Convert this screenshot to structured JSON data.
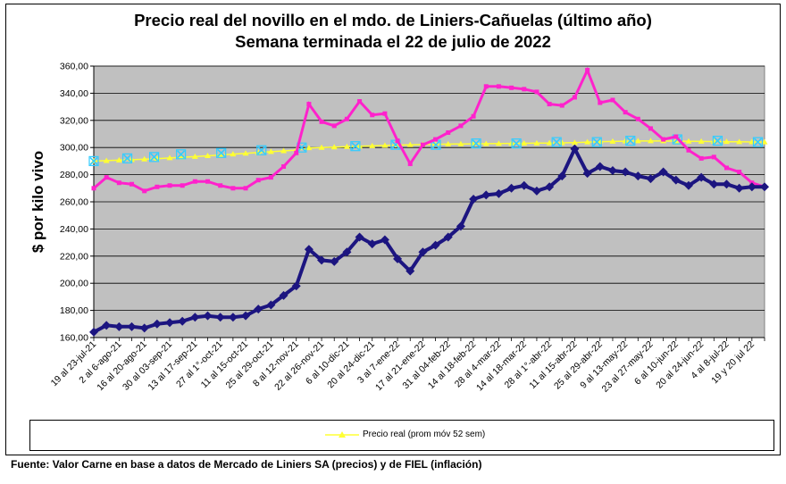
{
  "title_line1": "Precio real del novillo en el mdo. de Liniers-Cañuelas (último año)",
  "title_line2": "Semana terminada el 22 de julio de 2022",
  "source": "Fuente: Valor Carne en base a datos de Mercado de Liniers SA (precios) y de FIEL (inflación)",
  "colors": {
    "plot_bg": "#c0c0c0",
    "navy": "#1c1580",
    "magenta": "#ff22cc",
    "yellow": "#ffff33",
    "cyan": "#33ccff"
  },
  "chart_data": {
    "type": "line",
    "ylabel": "$ por kilo vivo",
    "ylim": [
      160,
      360
    ],
    "yticks": [
      160,
      180,
      200,
      220,
      240,
      260,
      280,
      300,
      320,
      340,
      360
    ],
    "ytick_labels": [
      "160,00",
      "180,00",
      "200,00",
      "220,00",
      "240,00",
      "260,00",
      "280,00",
      "300,00",
      "320,00",
      "340,00",
      "360,00"
    ],
    "grid": true,
    "xtick_labels": [
      "19 al 23-jul-21",
      "2 al 6-ago-21",
      "16 al 20-ago-21",
      "30 al 03-sep-21",
      "13 al 17-sep-21",
      "27 al 1°-oct-21",
      "11 al 15-oct-21",
      "25 al 29-oct-21",
      "8 al 12-nov-21",
      "22 al 26-nov-21",
      "6 al 10-dic-21",
      "20 al 24-dic-21",
      "3 al 7-ene-22",
      "17 al 21-ene-22",
      "31 al 04-feb-22",
      "14 al 18-feb-22",
      "28 al 4-mar-22",
      "14 al 18-mar-22",
      "28 al 1°-abr-22",
      "11 al 15-abr-22",
      "25 al 29-abr-22",
      "9 al 13-may-22",
      "23 al 27-may-22",
      "6 al 10-jun-22",
      "20 al 24-jun-22",
      "4 al 8-jul-22",
      "19 y 20 jul 22"
    ],
    "xtick_index": [
      0,
      2,
      4,
      6,
      8,
      10,
      12,
      14,
      16,
      18,
      20,
      22,
      24,
      26,
      28,
      30,
      32,
      34,
      36,
      38,
      40,
      42,
      44,
      46,
      48,
      50,
      52
    ],
    "series": [
      {
        "values": [
          270,
          278,
          274,
          273,
          268,
          271,
          272,
          272,
          275,
          275,
          272,
          270,
          270,
          276,
          278,
          286,
          296,
          332,
          319,
          316,
          321,
          334,
          324,
          325,
          305,
          288,
          302,
          306,
          311,
          316,
          323,
          345,
          345,
          344,
          343,
          341,
          332,
          331,
          337,
          357,
          333,
          335,
          326,
          321,
          314,
          306,
          308,
          298,
          292,
          293,
          285,
          282,
          274,
          271
        ]
      },
      {
        "values": [
          164,
          169,
          168,
          168,
          167,
          170,
          171,
          172,
          175,
          176,
          175,
          175,
          176,
          181,
          184,
          191,
          198,
          225,
          217,
          216,
          223,
          234,
          229,
          232,
          218,
          209,
          223,
          228,
          234,
          242,
          262,
          265,
          266,
          270,
          272,
          268,
          271,
          279,
          299,
          281,
          286,
          283,
          282,
          279,
          277,
          282,
          276,
          272,
          278,
          273,
          273,
          270,
          271,
          271
        ]
      },
      {
        "name": "Precio real (prom móv 52 sem)",
        "values": [
          290,
          290.3,
          290.7,
          291,
          291.4,
          291.8,
          292.3,
          292.8,
          293.3,
          293.9,
          294.5,
          295.1,
          295.7,
          296.3,
          296.9,
          297.5,
          298.1,
          299.7,
          300,
          300.3,
          300.6,
          300.9,
          301.2,
          301.5,
          301.8,
          302,
          302.2,
          302.4,
          302.5,
          302.6,
          302.7,
          302.8,
          302.9,
          303,
          303.1,
          303.2,
          303.3,
          303.4,
          303.6,
          304,
          304.3,
          304.5,
          304.7,
          304.8,
          304.8,
          304.8,
          304.7,
          304.6,
          304.5,
          304.4,
          304.3,
          304.2,
          304.1,
          304
        ]
      },
      {
        "values_at": [
          [
            0,
            290
          ],
          [
            5,
            292
          ],
          [
            9,
            293
          ],
          [
            13,
            295
          ],
          [
            19,
            296
          ],
          [
            25,
            298
          ],
          [
            31,
            300
          ],
          [
            39,
            301
          ],
          [
            45,
            302
          ],
          [
            51,
            302
          ],
          [
            57,
            303
          ],
          [
            63,
            303
          ],
          [
            69,
            304
          ],
          [
            75,
            304
          ],
          [
            80,
            305
          ],
          [
            87,
            306
          ],
          [
            93,
            305
          ],
          [
            99,
            304
          ]
        ]
      }
    ]
  },
  "legend_label": "Precio real (prom móv 52 sem)"
}
